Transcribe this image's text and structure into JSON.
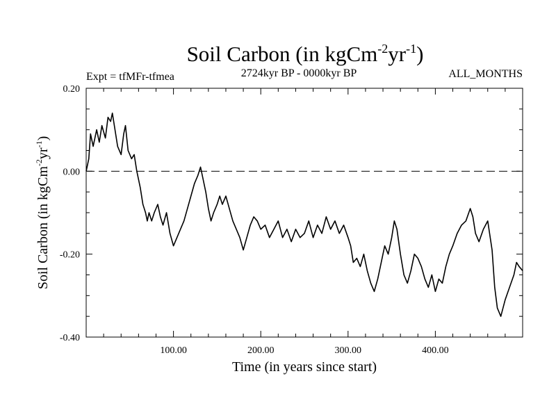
{
  "chart_data": {
    "type": "line",
    "title": {
      "main": "Soil Carbon (in kgCm",
      "sup1": "-2",
      "mid": "yr",
      "sup2": "-1",
      "end": ")"
    },
    "subtitle_left": "Expt = tfMFr-tfmea",
    "subtitle_center": "2724kyr BP - 0000kyr BP",
    "subtitle_right": "ALL_MONTHS",
    "xlabel": "Time (in years since start)",
    "ylabel": {
      "main": "Soil Carbon (in kgCm",
      "sup1": "-2",
      "mid": "yr",
      "sup2": "-1",
      "end": ")"
    },
    "xlim": [
      0,
      500
    ],
    "ylim": [
      -0.4,
      0.2
    ],
    "x_ticks": [
      100,
      200,
      300,
      400
    ],
    "x_tick_labels": [
      "100.00",
      "200.00",
      "300.00",
      "400.00"
    ],
    "x_minor_step": 20,
    "y_ticks": [
      0.2,
      0.0,
      -0.2,
      -0.4
    ],
    "y_tick_labels": [
      "0.20",
      "0.00",
      "-0.20",
      "-0.40"
    ],
    "y_minor_step": 0.05,
    "reference_line": {
      "y": 0.0,
      "style": "dashed"
    },
    "series": [
      {
        "name": "Soil Carbon",
        "x": [
          0,
          3,
          5,
          8,
          12,
          15,
          18,
          22,
          25,
          28,
          30,
          33,
          36,
          40,
          43,
          45,
          48,
          52,
          55,
          58,
          62,
          65,
          68,
          70,
          72,
          75,
          78,
          82,
          85,
          88,
          92,
          96,
          100,
          104,
          108,
          112,
          116,
          120,
          124,
          128,
          131,
          134,
          137,
          140,
          143,
          146,
          150,
          153,
          156,
          160,
          164,
          168,
          172,
          176,
          180,
          184,
          188,
          192,
          196,
          200,
          205,
          210,
          215,
          220,
          225,
          230,
          235,
          240,
          245,
          250,
          255,
          260,
          265,
          270,
          275,
          280,
          285,
          290,
          295,
          300,
          303,
          306,
          310,
          314,
          318,
          322,
          326,
          330,
          334,
          338,
          342,
          346,
          350,
          353,
          356,
          360,
          364,
          368,
          372,
          376,
          380,
          384,
          388,
          392,
          396,
          400,
          404,
          408,
          412,
          416,
          420,
          425,
          430,
          435,
          440,
          443,
          446,
          450,
          455,
          460,
          465,
          468,
          471,
          475,
          480,
          485,
          490,
          493,
          496,
          500
        ],
        "y": [
          0.0,
          0.03,
          0.09,
          0.06,
          0.1,
          0.07,
          0.11,
          0.08,
          0.13,
          0.12,
          0.14,
          0.1,
          0.06,
          0.04,
          0.09,
          0.11,
          0.05,
          0.03,
          0.04,
          0.0,
          -0.04,
          -0.08,
          -0.1,
          -0.12,
          -0.1,
          -0.12,
          -0.1,
          -0.08,
          -0.11,
          -0.13,
          -0.1,
          -0.15,
          -0.18,
          -0.16,
          -0.14,
          -0.12,
          -0.09,
          -0.06,
          -0.03,
          -0.01,
          0.01,
          -0.02,
          -0.05,
          -0.09,
          -0.12,
          -0.1,
          -0.08,
          -0.06,
          -0.08,
          -0.06,
          -0.09,
          -0.12,
          -0.14,
          -0.16,
          -0.19,
          -0.16,
          -0.13,
          -0.11,
          -0.12,
          -0.14,
          -0.13,
          -0.16,
          -0.14,
          -0.12,
          -0.16,
          -0.14,
          -0.17,
          -0.14,
          -0.16,
          -0.15,
          -0.12,
          -0.16,
          -0.13,
          -0.15,
          -0.11,
          -0.14,
          -0.12,
          -0.15,
          -0.13,
          -0.16,
          -0.18,
          -0.22,
          -0.21,
          -0.23,
          -0.2,
          -0.24,
          -0.27,
          -0.29,
          -0.26,
          -0.22,
          -0.18,
          -0.2,
          -0.16,
          -0.12,
          -0.14,
          -0.2,
          -0.25,
          -0.27,
          -0.24,
          -0.2,
          -0.21,
          -0.23,
          -0.26,
          -0.28,
          -0.25,
          -0.29,
          -0.26,
          -0.27,
          -0.23,
          -0.2,
          -0.18,
          -0.15,
          -0.13,
          -0.12,
          -0.09,
          -0.11,
          -0.15,
          -0.17,
          -0.14,
          -0.12,
          -0.19,
          -0.28,
          -0.33,
          -0.35,
          -0.31,
          -0.28,
          -0.25,
          -0.22,
          -0.23,
          -0.24
        ]
      }
    ]
  }
}
